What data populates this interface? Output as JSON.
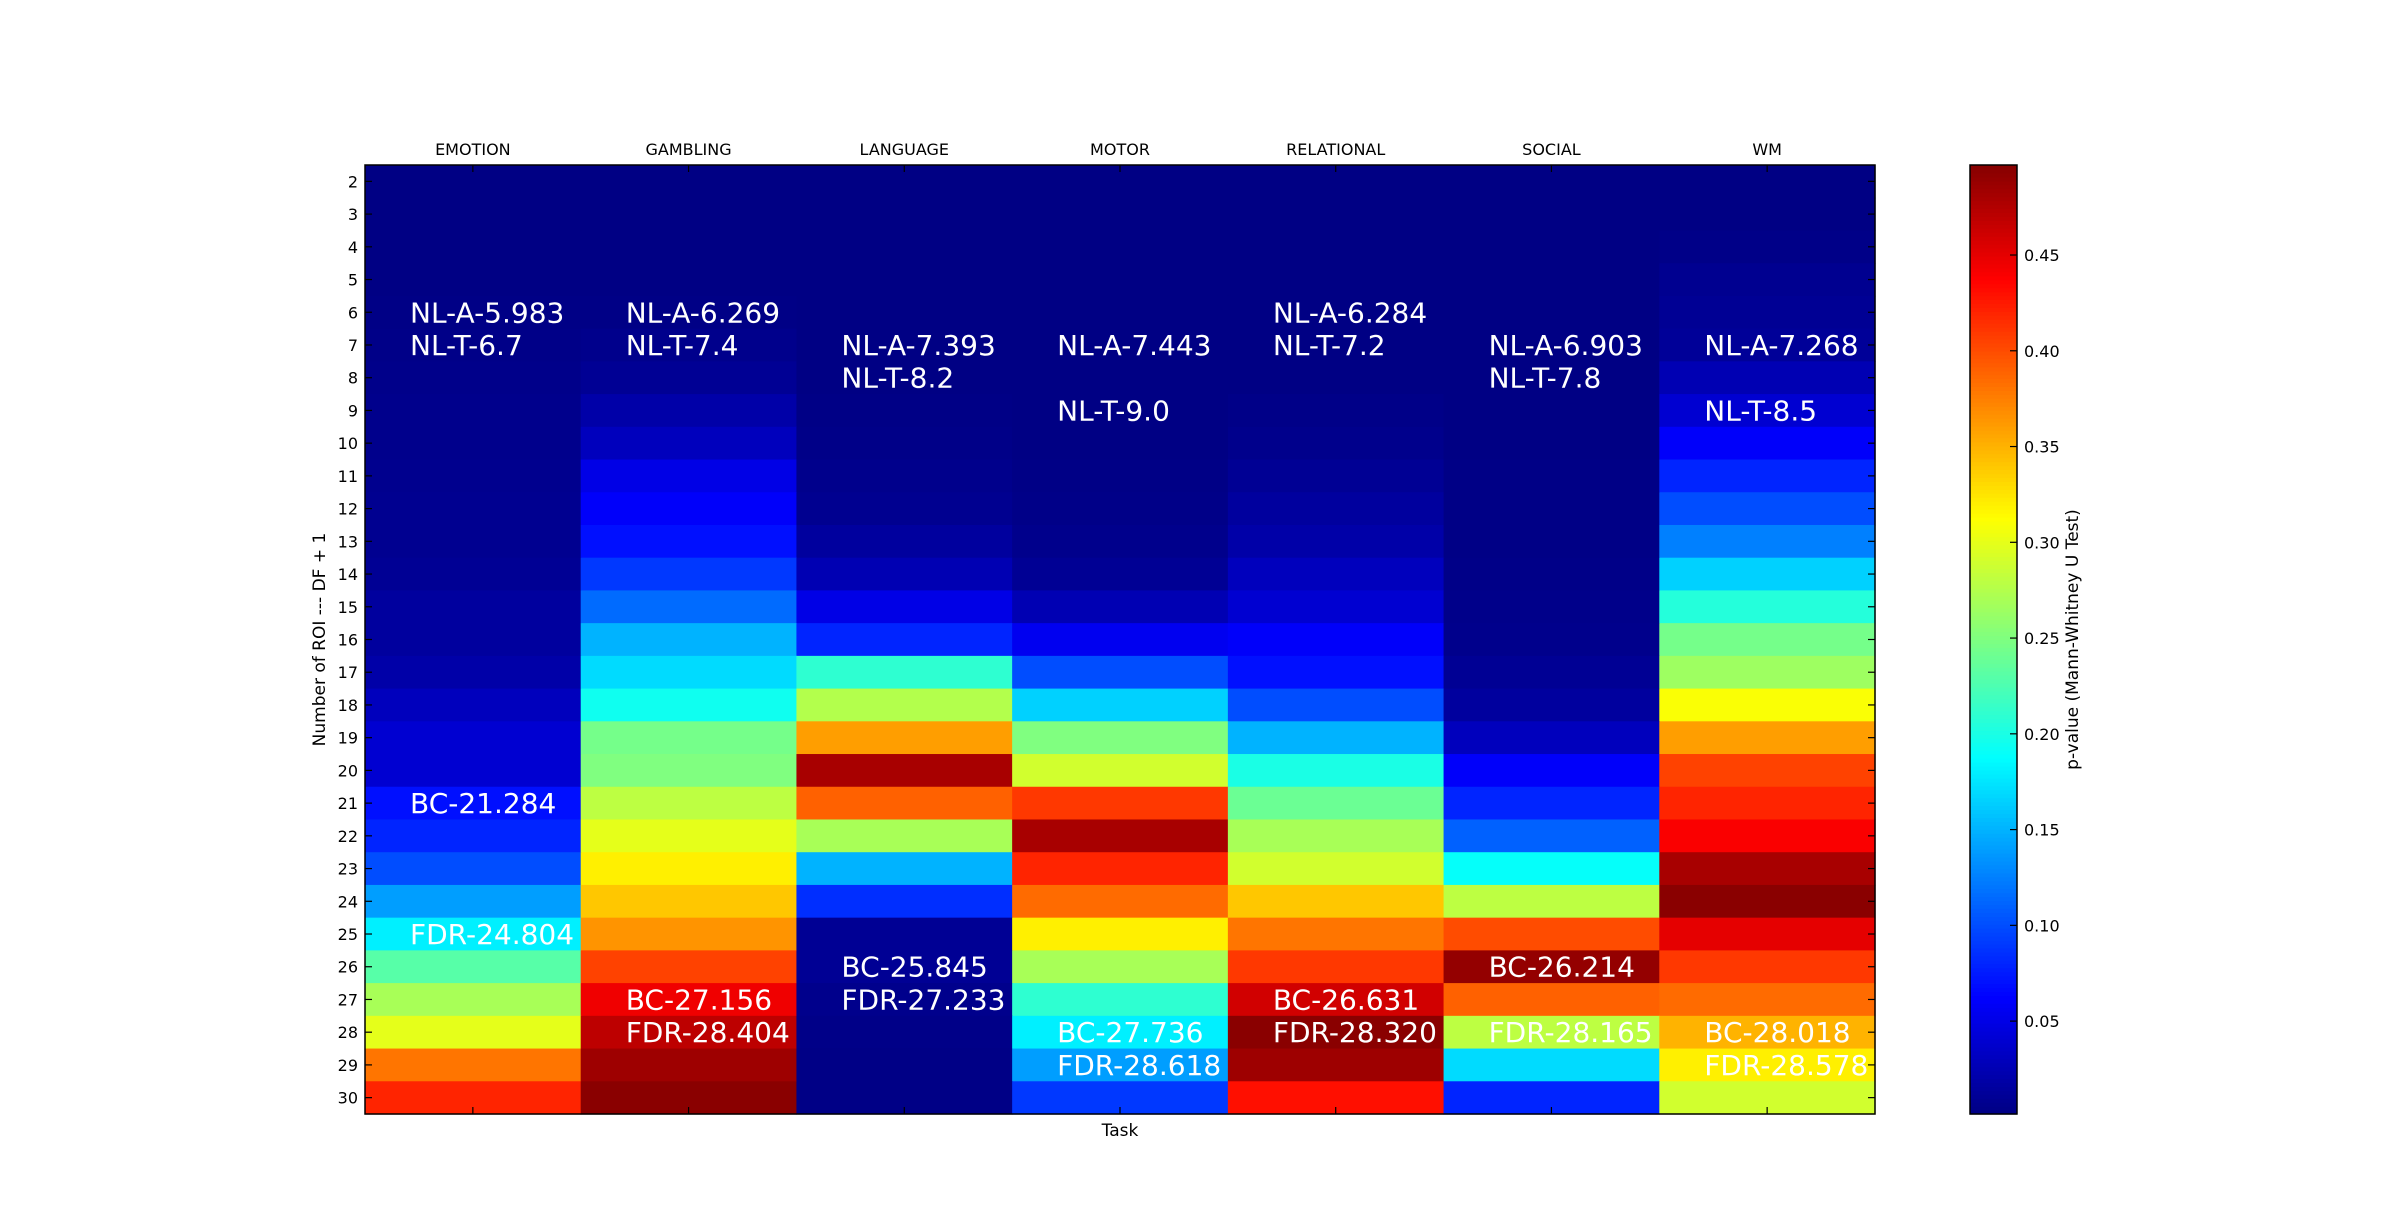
{
  "chart_data": {
    "type": "heatmap",
    "title": "",
    "xlabel": "Task",
    "ylabel": "Number of ROI --- DF + 1",
    "columns": [
      "EMOTION",
      "GAMBLING",
      "LANGUAGE",
      "MOTOR",
      "RELATIONAL",
      "SOCIAL",
      "WM"
    ],
    "rows": [
      "2",
      "3",
      "4",
      "5",
      "6",
      "7",
      "8",
      "9",
      "10",
      "11",
      "12",
      "13",
      "14",
      "15",
      "16",
      "17",
      "18",
      "19",
      "20",
      "21",
      "22",
      "23",
      "24",
      "25",
      "26",
      "27",
      "28",
      "29",
      "30"
    ],
    "values": [
      [
        0.002,
        0.002,
        0.002,
        0.002,
        0.002,
        0.002,
        0.002
      ],
      [
        0.002,
        0.002,
        0.002,
        0.002,
        0.002,
        0.002,
        0.002
      ],
      [
        0.002,
        0.002,
        0.002,
        0.002,
        0.002,
        0.002,
        0.004
      ],
      [
        0.002,
        0.002,
        0.002,
        0.002,
        0.002,
        0.002,
        0.008
      ],
      [
        0.003,
        0.003,
        0.002,
        0.002,
        0.002,
        0.002,
        0.01
      ],
      [
        0.004,
        0.006,
        0.002,
        0.002,
        0.002,
        0.002,
        0.012
      ],
      [
        0.005,
        0.01,
        0.002,
        0.002,
        0.002,
        0.002,
        0.025
      ],
      [
        0.006,
        0.02,
        0.003,
        0.002,
        0.004,
        0.002,
        0.04
      ],
      [
        0.006,
        0.03,
        0.004,
        0.002,
        0.006,
        0.002,
        0.06
      ],
      [
        0.007,
        0.05,
        0.006,
        0.003,
        0.01,
        0.003,
        0.08
      ],
      [
        0.008,
        0.06,
        0.008,
        0.004,
        0.015,
        0.003,
        0.1
      ],
      [
        0.008,
        0.07,
        0.015,
        0.006,
        0.02,
        0.003,
        0.125
      ],
      [
        0.01,
        0.09,
        0.025,
        0.01,
        0.03,
        0.004,
        0.165
      ],
      [
        0.015,
        0.115,
        0.05,
        0.025,
        0.04,
        0.005,
        0.205
      ],
      [
        0.015,
        0.15,
        0.08,
        0.055,
        0.06,
        0.006,
        0.245
      ],
      [
        0.02,
        0.17,
        0.21,
        0.1,
        0.07,
        0.01,
        0.265
      ],
      [
        0.03,
        0.195,
        0.275,
        0.165,
        0.1,
        0.015,
        0.31
      ],
      [
        0.04,
        0.245,
        0.36,
        0.25,
        0.15,
        0.03,
        0.36
      ],
      [
        0.04,
        0.25,
        0.48,
        0.29,
        0.2,
        0.06,
        0.405
      ],
      [
        0.07,
        0.28,
        0.39,
        0.41,
        0.24,
        0.08,
        0.42
      ],
      [
        0.08,
        0.3,
        0.27,
        0.48,
        0.27,
        0.11,
        0.44
      ],
      [
        0.1,
        0.32,
        0.15,
        0.42,
        0.29,
        0.19,
        0.48
      ],
      [
        0.14,
        0.34,
        0.085,
        0.385,
        0.34,
        0.28,
        0.495
      ],
      [
        0.18,
        0.365,
        0.01,
        0.32,
        0.38,
        0.4,
        0.45
      ],
      [
        0.23,
        0.405,
        0.01,
        0.27,
        0.41,
        0.49,
        0.41
      ],
      [
        0.27,
        0.445,
        0.006,
        0.21,
        0.46,
        0.39,
        0.385
      ],
      [
        0.3,
        0.47,
        0.004,
        0.18,
        0.495,
        0.28,
        0.35
      ],
      [
        0.38,
        0.485,
        0.003,
        0.14,
        0.485,
        0.17,
        0.32
      ],
      [
        0.42,
        0.495,
        0.003,
        0.09,
        0.43,
        0.08,
        0.29
      ]
    ],
    "annotations": [
      {
        "column": "EMOTION",
        "row": "6",
        "text": "NL-A-5.983"
      },
      {
        "column": "EMOTION",
        "row": "7",
        "text": "NL-T-6.7"
      },
      {
        "column": "EMOTION",
        "row": "21",
        "text": "BC-21.284"
      },
      {
        "column": "EMOTION",
        "row": "25",
        "text": "FDR-24.804"
      },
      {
        "column": "GAMBLING",
        "row": "6",
        "text": "NL-A-6.269"
      },
      {
        "column": "GAMBLING",
        "row": "7",
        "text": "NL-T-7.4"
      },
      {
        "column": "GAMBLING",
        "row": "27",
        "text": "BC-27.156"
      },
      {
        "column": "GAMBLING",
        "row": "28",
        "text": "FDR-28.404"
      },
      {
        "column": "LANGUAGE",
        "row": "7",
        "text": "NL-A-7.393"
      },
      {
        "column": "LANGUAGE",
        "row": "8",
        "text": "NL-T-8.2"
      },
      {
        "column": "LANGUAGE",
        "row": "26",
        "text": "BC-25.845"
      },
      {
        "column": "LANGUAGE",
        "row": "27",
        "text": "FDR-27.233"
      },
      {
        "column": "MOTOR",
        "row": "7",
        "text": "NL-A-7.443"
      },
      {
        "column": "MOTOR",
        "row": "9",
        "text": "NL-T-9.0"
      },
      {
        "column": "MOTOR",
        "row": "28",
        "text": "BC-27.736"
      },
      {
        "column": "MOTOR",
        "row": "29",
        "text": "FDR-28.618"
      },
      {
        "column": "RELATIONAL",
        "row": "6",
        "text": "NL-A-6.284"
      },
      {
        "column": "RELATIONAL",
        "row": "7",
        "text": "NL-T-7.2"
      },
      {
        "column": "RELATIONAL",
        "row": "27",
        "text": "BC-26.631"
      },
      {
        "column": "RELATIONAL",
        "row": "28",
        "text": "FDR-28.320"
      },
      {
        "column": "SOCIAL",
        "row": "7",
        "text": "NL-A-6.903"
      },
      {
        "column": "SOCIAL",
        "row": "8",
        "text": "NL-T-7.8"
      },
      {
        "column": "SOCIAL",
        "row": "26",
        "text": "BC-26.214"
      },
      {
        "column": "SOCIAL",
        "row": "28",
        "text": "FDR-28.165"
      },
      {
        "column": "WM",
        "row": "7",
        "text": "NL-A-7.268"
      },
      {
        "column": "WM",
        "row": "9",
        "text": "NL-T-8.5"
      },
      {
        "column": "WM",
        "row": "28",
        "text": "BC-28.018"
      },
      {
        "column": "WM",
        "row": "29",
        "text": "FDR-28.578"
      }
    ],
    "colorbar": {
      "label": "p-value (Mann-Whitney U Test)",
      "colormap": "jet",
      "range": [
        0,
        0.5
      ],
      "ticks": [
        0.05,
        0.1,
        0.15,
        0.2,
        0.25,
        0.3,
        0.35,
        0.4,
        0.45
      ],
      "tick_labels": [
        "0.05",
        "0.10",
        "0.15",
        "0.20",
        "0.25",
        "0.30",
        "0.35",
        "0.40",
        "0.45"
      ]
    },
    "annotation_color": "#ffffff"
  }
}
